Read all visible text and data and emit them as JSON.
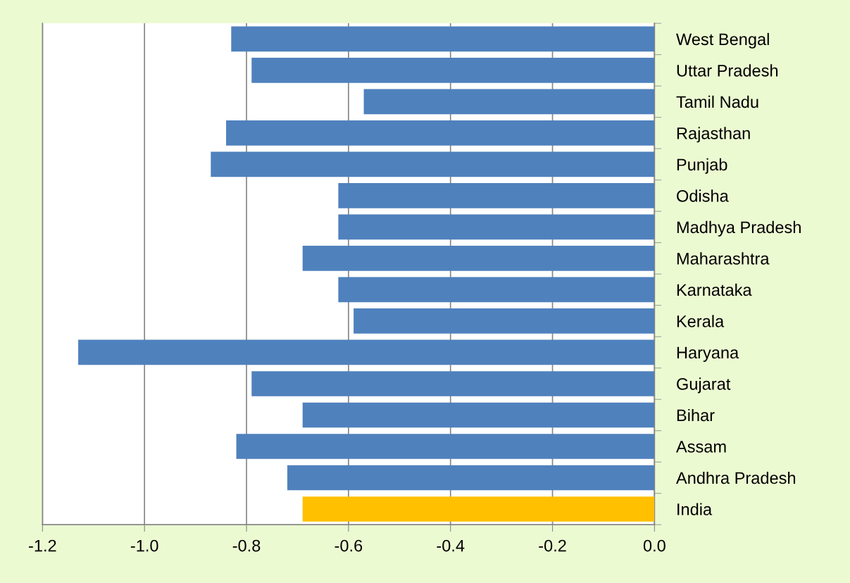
{
  "chart_data": {
    "type": "bar",
    "orientation": "horizontal",
    "categories": [
      "West Bengal",
      "Uttar Pradesh",
      "Tamil Nadu",
      "Rajasthan",
      "Punjab",
      "Odisha",
      "Madhya Pradesh",
      "Maharashtra",
      "Karnataka",
      "Kerala",
      "Haryana",
      "Gujarat",
      "Bihar",
      "Assam",
      "Andhra Pradesh",
      "India"
    ],
    "values": [
      -0.83,
      -0.79,
      -0.57,
      -0.84,
      -0.87,
      -0.62,
      -0.62,
      -0.69,
      -0.62,
      -0.59,
      -1.13,
      -0.79,
      -0.69,
      -0.82,
      -0.72,
      -0.69
    ],
    "colors": [
      "#4f81bd",
      "#4f81bd",
      "#4f81bd",
      "#4f81bd",
      "#4f81bd",
      "#4f81bd",
      "#4f81bd",
      "#4f81bd",
      "#4f81bd",
      "#4f81bd",
      "#4f81bd",
      "#4f81bd",
      "#4f81bd",
      "#4f81bd",
      "#4f81bd",
      "#ffc000"
    ],
    "xlim": [
      -1.2,
      0.0
    ],
    "xticks": [
      {
        "value": -1.2,
        "label": "-1.2"
      },
      {
        "value": -1.0,
        "label": "-1.0"
      },
      {
        "value": -0.8,
        "label": "-0.8"
      },
      {
        "value": -0.6,
        "label": "-0.6"
      },
      {
        "value": -0.4,
        "label": "-0.4"
      },
      {
        "value": -0.2,
        "label": "-0.2"
      },
      {
        "value": 0.0,
        "label": "0.0"
      }
    ],
    "grid": "x",
    "legend": false
  }
}
